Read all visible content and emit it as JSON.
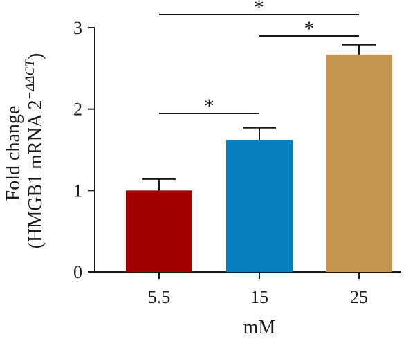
{
  "chart_data": {
    "type": "bar",
    "title": "",
    "xlabel": "mM",
    "ylabel": {
      "line1": "Fold change",
      "line2_prefix": "(HMGB1 mRNA 2",
      "line2_sup": "−ΔΔCT",
      "line2_suffix": ")"
    },
    "categories": [
      "5.5",
      "15",
      "25"
    ],
    "values": [
      1.0,
      1.62,
      2.67
    ],
    "errors": [
      0.14,
      0.15,
      0.12
    ],
    "colors": [
      "#a00000",
      "#0a7fc0",
      "#c4964f"
    ],
    "ylim": [
      0,
      3
    ],
    "yticks": [
      0,
      1,
      2,
      3
    ],
    "significance": [
      {
        "from": 0,
        "to": 1,
        "label": "*"
      },
      {
        "from": 1,
        "to": 2,
        "label": "*"
      },
      {
        "from": 0,
        "to": 2,
        "label": "*"
      }
    ]
  }
}
